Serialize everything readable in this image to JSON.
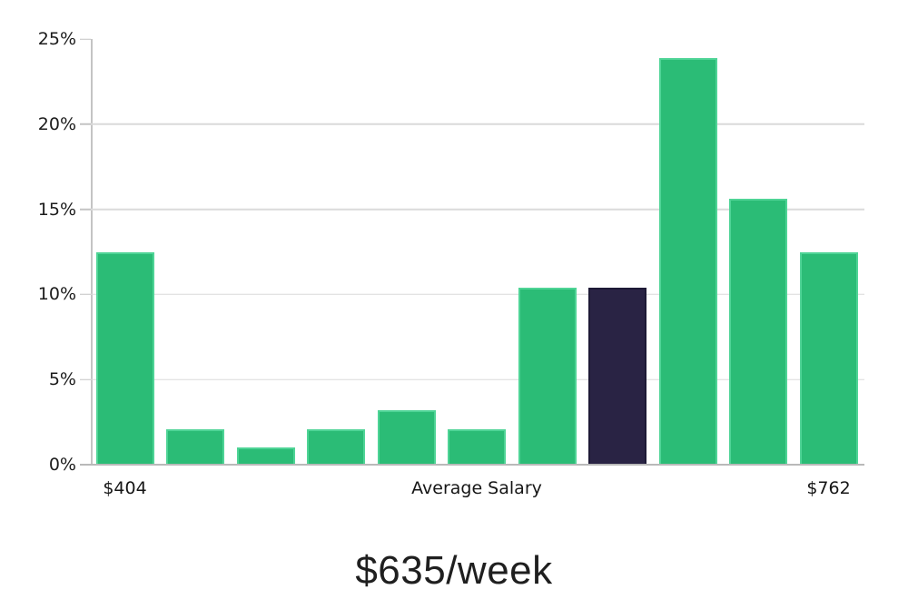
{
  "chart_data": {
    "type": "bar",
    "title": "$635/week",
    "values": [
      12.5,
      2.1,
      1.0,
      2.1,
      3.2,
      2.1,
      10.4,
      10.4,
      23.9,
      15.6,
      12.5
    ],
    "highlight_index": 7,
    "y_ticks": [
      "0%",
      "5%",
      "10%",
      "15%",
      "20%",
      "25%"
    ],
    "y_tick_values": [
      0,
      5,
      10,
      15,
      20,
      25
    ],
    "ylim": [
      0,
      25
    ],
    "grid": true,
    "legend": "none",
    "x_axis_labels": [
      {
        "text": "$404",
        "bar_index": 0
      },
      {
        "text": "Average Salary",
        "bar_index": 5
      },
      {
        "text": "$762",
        "bar_index": 10
      }
    ],
    "colors": {
      "bar": "#2bbc76",
      "bar_stroke": "#4fd496",
      "highlight_bar": "#292344",
      "highlight_stroke": "#1e1a36",
      "gridline": "#dadada",
      "axis": "#c4c4c4",
      "text": "#1c1c1c"
    }
  }
}
